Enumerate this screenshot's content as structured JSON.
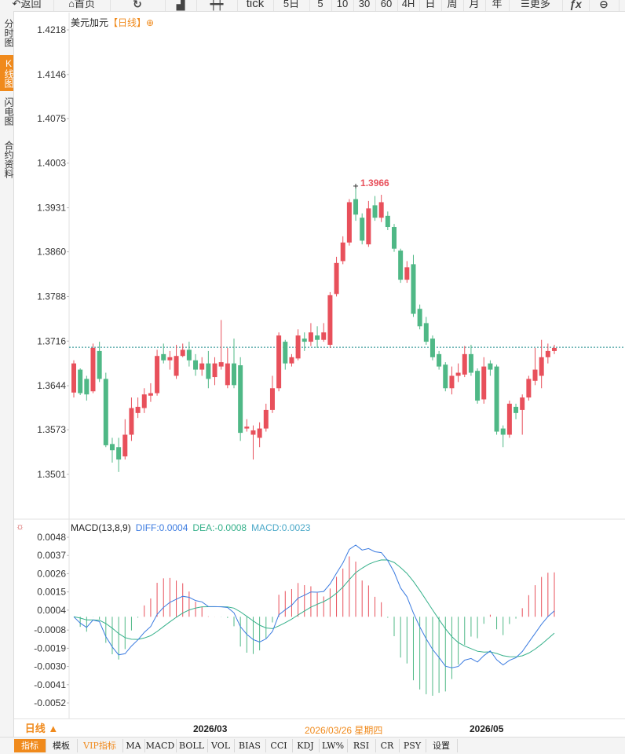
{
  "toolbar": {
    "back_label": "返回",
    "home_label": "首页",
    "tick_label": "tick",
    "five_day_label": "5日",
    "min5": "5",
    "min10": "10",
    "min30": "30",
    "min60": "60",
    "h4": "4H",
    "day": "日",
    "week": "周",
    "month": "月",
    "year": "年",
    "more_label": "更多",
    "fx_label": "ƒx"
  },
  "side_tabs": {
    "timeshare": "分时图",
    "kline": "K线图",
    "flash": "闪电图",
    "contract": "合约资料"
  },
  "chart_title": {
    "name": "美元加元",
    "period": "【日线】"
  },
  "colors": {
    "up": "#e8505b",
    "down": "#4fb886",
    "diff": "#3b7be0",
    "dea": "#35b08a",
    "accent": "#f08a1c"
  },
  "chart_data": {
    "type": "candlestick",
    "price_ticks": [
      "1.4218",
      "1.4146",
      "1.4075",
      "1.4003",
      "1.3931",
      "1.3860",
      "1.3788",
      "1.3716",
      "1.3644",
      "1.3573",
      "1.3501"
    ],
    "price_range": [
      1.3501,
      1.4218
    ],
    "last_price": 1.3706,
    "max_label": "1.3966",
    "max_value": 1.3966,
    "candles": [
      [
        1.3633,
        1.368,
        1.3625,
        1.3685
      ],
      [
        1.367,
        1.3632,
        1.3629,
        1.3672
      ],
      [
        1.3655,
        1.363,
        1.362,
        1.366
      ],
      [
        1.3635,
        1.3705,
        1.3632,
        1.3712
      ],
      [
        1.37,
        1.3655,
        1.365,
        1.3715
      ],
      [
        1.3655,
        1.3548,
        1.3545,
        1.3665
      ],
      [
        1.355,
        1.354,
        1.352,
        1.356
      ],
      [
        1.3545,
        1.3525,
        1.3505,
        1.356
      ],
      [
        1.353,
        1.3565,
        1.3525,
        1.359
      ],
      [
        1.3565,
        1.3608,
        1.3555,
        1.3625
      ],
      [
        1.36,
        1.361,
        1.3592,
        1.3625
      ],
      [
        1.3608,
        1.363,
        1.36,
        1.364
      ],
      [
        1.3628,
        1.3632,
        1.3618,
        1.3648
      ],
      [
        1.3632,
        1.3692,
        1.3628,
        1.3702
      ],
      [
        1.3695,
        1.3685,
        1.368,
        1.3712
      ],
      [
        1.3685,
        1.369,
        1.367,
        1.37
      ],
      [
        1.366,
        1.3692,
        1.3655,
        1.371
      ],
      [
        1.3692,
        1.3702,
        1.369,
        1.3712
      ],
      [
        1.3702,
        1.3685,
        1.3675,
        1.3715
      ],
      [
        1.3685,
        1.367,
        1.366,
        1.3695
      ],
      [
        1.367,
        1.368,
        1.366,
        1.369
      ],
      [
        1.368,
        1.3655,
        1.364,
        1.37
      ],
      [
        1.3658,
        1.368,
        1.3645,
        1.369
      ],
      [
        1.3675,
        1.3682,
        1.367,
        1.375
      ],
      [
        1.3645,
        1.368,
        1.364,
        1.3705
      ],
      [
        1.368,
        1.3645,
        1.364,
        1.372
      ],
      [
        1.3677,
        1.3568,
        1.3555,
        1.369
      ],
      [
        1.3575,
        1.3578,
        1.357,
        1.359
      ],
      [
        1.3565,
        1.3572,
        1.3525,
        1.358
      ],
      [
        1.356,
        1.3575,
        1.3545,
        1.3585
      ],
      [
        1.3575,
        1.3605,
        1.357,
        1.3615
      ],
      [
        1.3605,
        1.364,
        1.36,
        1.366
      ],
      [
        1.364,
        1.3725,
        1.3635,
        1.373
      ],
      [
        1.3715,
        1.368,
        1.367,
        1.3718
      ],
      [
        1.368,
        1.369,
        1.3675,
        1.3695
      ],
      [
        1.3688,
        1.3725,
        1.3685,
        1.3735
      ],
      [
        1.372,
        1.3715,
        1.37,
        1.373
      ],
      [
        1.3715,
        1.373,
        1.3708,
        1.3745
      ],
      [
        1.3725,
        1.3718,
        1.3705,
        1.374
      ],
      [
        1.3718,
        1.373,
        1.3715,
        1.3745
      ],
      [
        1.371,
        1.379,
        1.3705,
        1.3795
      ],
      [
        1.3792,
        1.3842,
        1.3788,
        1.3852
      ],
      [
        1.3845,
        1.3875,
        1.384,
        1.3885
      ],
      [
        1.3875,
        1.394,
        1.387,
        1.3945
      ],
      [
        1.3945,
        1.392,
        1.391,
        1.3966
      ],
      [
        1.3915,
        1.3878,
        1.3872,
        1.3922
      ],
      [
        1.3872,
        1.393,
        1.3868,
        1.3942
      ],
      [
        1.3935,
        1.3915,
        1.391,
        1.395
      ],
      [
        1.3915,
        1.394,
        1.3908,
        1.3952
      ],
      [
        1.3918,
        1.39,
        1.3895,
        1.3925
      ],
      [
        1.39,
        1.3865,
        1.386,
        1.3905
      ],
      [
        1.3862,
        1.3815,
        1.381,
        1.3865
      ],
      [
        1.3815,
        1.3835,
        1.381,
        1.3845
      ],
      [
        1.384,
        1.376,
        1.3755,
        1.3855
      ],
      [
        1.3768,
        1.374,
        1.3735,
        1.3775
      ],
      [
        1.3745,
        1.3715,
        1.371,
        1.3755
      ],
      [
        1.372,
        1.369,
        1.3685,
        1.3725
      ],
      [
        1.3695,
        1.3675,
        1.367,
        1.37
      ],
      [
        1.3678,
        1.364,
        1.3635,
        1.3682
      ],
      [
        1.364,
        1.366,
        1.363,
        1.3675
      ],
      [
        1.366,
        1.3665,
        1.365,
        1.368
      ],
      [
        1.3662,
        1.3695,
        1.3658,
        1.3708
      ],
      [
        1.3695,
        1.3665,
        1.366,
        1.371
      ],
      [
        1.3668,
        1.362,
        1.3615,
        1.3672
      ],
      [
        1.3622,
        1.3675,
        1.3615,
        1.369
      ],
      [
        1.368,
        1.367,
        1.366,
        1.3685
      ],
      [
        1.3675,
        1.357,
        1.3565,
        1.3678
      ],
      [
        1.3575,
        1.3565,
        1.3545,
        1.358
      ],
      [
        1.3565,
        1.3615,
        1.356,
        1.362
      ],
      [
        1.361,
        1.36,
        1.359,
        1.3615
      ],
      [
        1.3605,
        1.3625,
        1.3565,
        1.363
      ],
      [
        1.3625,
        1.3655,
        1.362,
        1.366
      ],
      [
        1.3652,
        1.367,
        1.3645,
        1.3705
      ],
      [
        1.366,
        1.369,
        1.364,
        1.3718
      ],
      [
        1.369,
        1.37,
        1.368,
        1.3712
      ],
      [
        1.37,
        1.3705,
        1.3695,
        1.371
      ]
    ],
    "macd": {
      "label": "MACD(13,8,9)",
      "diff_label": "DIFF:0.0004",
      "dea_label": "DEA:-0.0008",
      "macd_label": "MACD:0.0023",
      "ticks": [
        "0.0048",
        "0.0037",
        "0.0026",
        "0.0015",
        "0.0004",
        "-0.0008",
        "-0.0019",
        "-0.0030",
        "-0.0041",
        "-0.0052"
      ],
      "range": [
        -0.0052,
        0.0048
      ]
    },
    "x_labels": [
      {
        "text": "2026/03",
        "index": 27
      },
      {
        "text": "2026/05",
        "index": 67
      }
    ],
    "cursor_label": "2026/03/26 星期四"
  },
  "bottom": {
    "period_label": "日线 ▲",
    "tabs": [
      "指标",
      "模板",
      "VIP指标",
      "MA",
      "MACD",
      "BOLL",
      "VOL",
      "BIAS",
      "CCI",
      "KDJ",
      "LW%",
      "RSI",
      "CR",
      "PSY",
      "设置"
    ]
  }
}
